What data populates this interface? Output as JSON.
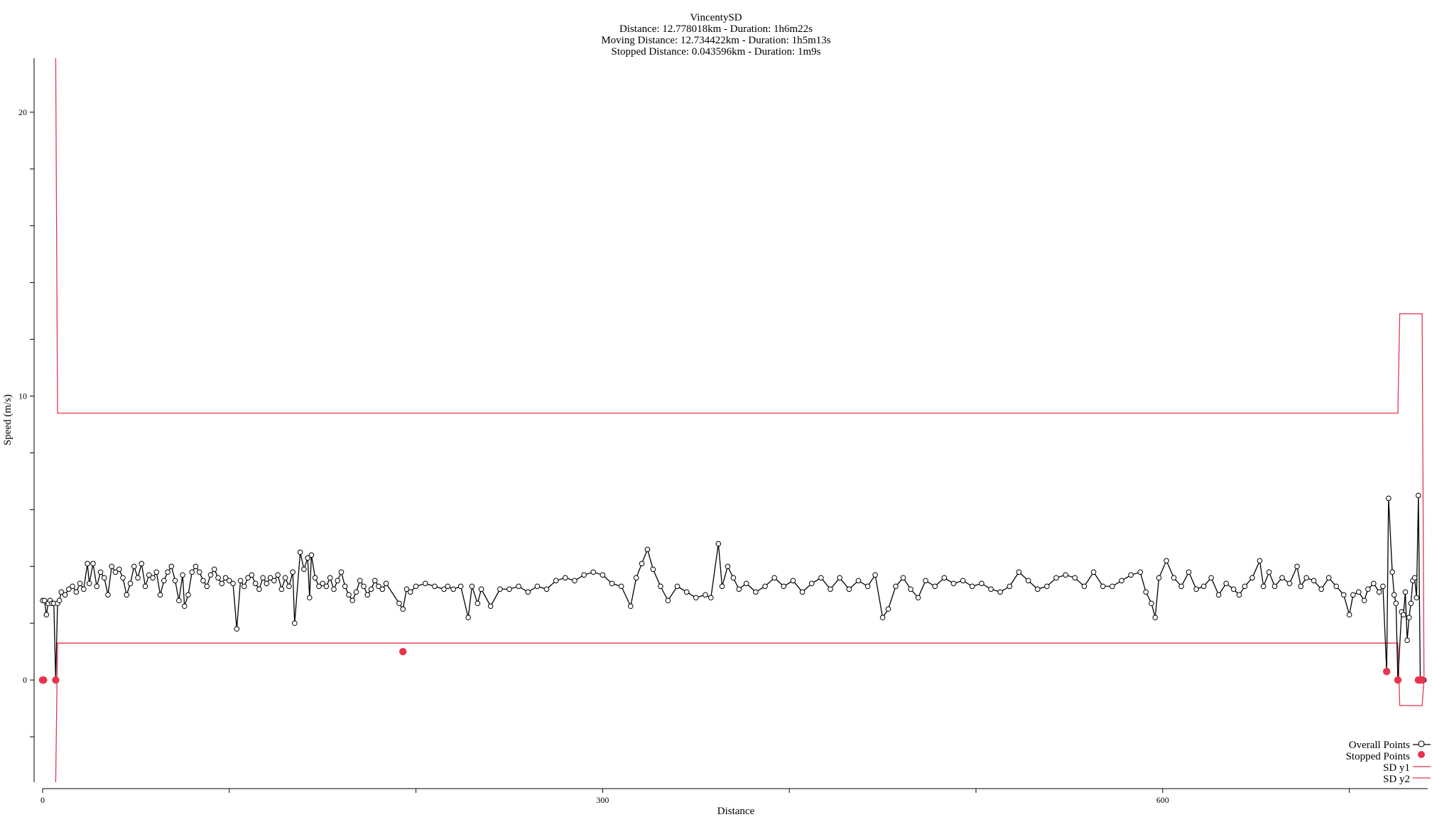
{
  "chart_data": {
    "type": "line",
    "title": "VincentySD",
    "subtitle_lines": [
      "Distance: 12.778018km - Duration: 1h6m22s",
      "Moving Distance: 12.734422km - Duration: 1h5m13s",
      "Stopped Distance: 0.043596km - Duration: 1m9s"
    ],
    "xlabel": "Distance",
    "ylabel": "Speed (m/s)",
    "xlim": [
      0,
      742
    ],
    "ylim": [
      -3.6,
      21.9
    ],
    "x_ticks": [
      0,
      100,
      200,
      300,
      400,
      500,
      600,
      700
    ],
    "x_tick_labels": [
      "0",
      "",
      "",
      "300",
      "",
      "",
      "600",
      ""
    ],
    "y_ticks": [
      -2,
      0,
      2,
      4,
      6,
      8,
      10,
      12,
      14,
      16,
      18,
      20
    ],
    "y_tick_labels": [
      "",
      "0",
      "",
      "",
      "",
      "",
      "10",
      "",
      "",
      "",
      "",
      "20"
    ],
    "grid": false,
    "legend_position": "bottom-right",
    "colors": {
      "overall": "#000000",
      "stopped": "#e8344e",
      "sd": "#e8344e"
    },
    "series": [
      {
        "name": "Overall Points",
        "style": "line-with-open-circles",
        "points": [
          [
            0,
            2.8
          ],
          [
            1,
            2.8
          ],
          [
            2,
            2.3
          ],
          [
            3,
            2.7
          ],
          [
            4,
            2.8
          ],
          [
            5,
            2.7
          ],
          [
            6,
            2.7
          ],
          [
            7,
            0.0
          ],
          [
            8,
            2.7
          ],
          [
            9,
            2.8
          ],
          [
            10,
            3.1
          ],
          [
            12,
            3.0
          ],
          [
            14,
            3.2
          ],
          [
            16,
            3.3
          ],
          [
            18,
            3.1
          ],
          [
            20,
            3.4
          ],
          [
            22,
            3.2
          ],
          [
            24,
            4.1
          ],
          [
            25,
            3.4
          ],
          [
            27,
            4.1
          ],
          [
            29,
            3.3
          ],
          [
            31,
            3.8
          ],
          [
            33,
            3.6
          ],
          [
            35,
            3.0
          ],
          [
            37,
            4.0
          ],
          [
            39,
            3.8
          ],
          [
            41,
            3.9
          ],
          [
            43,
            3.6
          ],
          [
            45,
            3.0
          ],
          [
            47,
            3.4
          ],
          [
            49,
            4.0
          ],
          [
            51,
            3.6
          ],
          [
            53,
            4.1
          ],
          [
            55,
            3.3
          ],
          [
            57,
            3.7
          ],
          [
            59,
            3.6
          ],
          [
            61,
            3.8
          ],
          [
            63,
            3.0
          ],
          [
            65,
            3.5
          ],
          [
            67,
            3.8
          ],
          [
            69,
            4.0
          ],
          [
            71,
            3.5
          ],
          [
            73,
            2.8
          ],
          [
            75,
            3.7
          ],
          [
            76,
            2.6
          ],
          [
            78,
            3.0
          ],
          [
            80,
            3.8
          ],
          [
            82,
            4.0
          ],
          [
            84,
            3.8
          ],
          [
            86,
            3.5
          ],
          [
            88,
            3.3
          ],
          [
            90,
            3.7
          ],
          [
            92,
            3.9
          ],
          [
            94,
            3.6
          ],
          [
            96,
            3.4
          ],
          [
            98,
            3.6
          ],
          [
            100,
            3.5
          ],
          [
            102,
            3.4
          ],
          [
            104,
            1.8
          ],
          [
            106,
            3.5
          ],
          [
            108,
            3.3
          ],
          [
            110,
            3.6
          ],
          [
            112,
            3.7
          ],
          [
            114,
            3.4
          ],
          [
            116,
            3.2
          ],
          [
            118,
            3.6
          ],
          [
            120,
            3.4
          ],
          [
            122,
            3.6
          ],
          [
            124,
            3.5
          ],
          [
            126,
            3.7
          ],
          [
            128,
            3.2
          ],
          [
            130,
            3.6
          ],
          [
            132,
            3.3
          ],
          [
            134,
            3.8
          ],
          [
            135,
            2.0
          ],
          [
            138,
            4.5
          ],
          [
            140,
            3.9
          ],
          [
            142,
            4.3
          ],
          [
            143,
            2.9
          ],
          [
            144,
            4.4
          ],
          [
            146,
            3.6
          ],
          [
            148,
            3.3
          ],
          [
            150,
            3.4
          ],
          [
            152,
            3.3
          ],
          [
            154,
            3.6
          ],
          [
            156,
            3.2
          ],
          [
            158,
            3.5
          ],
          [
            160,
            3.8
          ],
          [
            162,
            3.3
          ],
          [
            164,
            3.0
          ],
          [
            166,
            2.8
          ],
          [
            168,
            3.1
          ],
          [
            170,
            3.5
          ],
          [
            172,
            3.3
          ],
          [
            174,
            3.0
          ],
          [
            176,
            3.2
          ],
          [
            178,
            3.5
          ],
          [
            180,
            3.3
          ],
          [
            182,
            3.2
          ],
          [
            184,
            3.4
          ],
          [
            191,
            2.7
          ],
          [
            193,
            2.5
          ],
          [
            195,
            3.2
          ],
          [
            197,
            3.1
          ],
          [
            200,
            3.3
          ],
          [
            205,
            3.4
          ],
          [
            210,
            3.3
          ],
          [
            215,
            3.2
          ],
          [
            217,
            3.3
          ],
          [
            220,
            3.2
          ],
          [
            224,
            3.3
          ],
          [
            228,
            2.2
          ],
          [
            230,
            3.3
          ],
          [
            233,
            2.7
          ],
          [
            235,
            3.2
          ],
          [
            240,
            2.6
          ],
          [
            245,
            3.2
          ],
          [
            250,
            3.2
          ],
          [
            255,
            3.3
          ],
          [
            260,
            3.1
          ],
          [
            265,
            3.3
          ],
          [
            270,
            3.2
          ],
          [
            275,
            3.5
          ],
          [
            280,
            3.6
          ],
          [
            285,
            3.5
          ],
          [
            290,
            3.7
          ],
          [
            295,
            3.8
          ],
          [
            300,
            3.7
          ],
          [
            305,
            3.4
          ],
          [
            310,
            3.3
          ],
          [
            315,
            2.6
          ],
          [
            318,
            3.6
          ],
          [
            321,
            4.1
          ],
          [
            324,
            4.6
          ],
          [
            327,
            3.9
          ],
          [
            331,
            3.3
          ],
          [
            335,
            2.8
          ],
          [
            340,
            3.3
          ],
          [
            345,
            3.1
          ],
          [
            350,
            2.9
          ],
          [
            355,
            3.0
          ],
          [
            358,
            2.9
          ],
          [
            362,
            4.8
          ],
          [
            364,
            3.3
          ],
          [
            367,
            4.0
          ],
          [
            370,
            3.6
          ],
          [
            373,
            3.2
          ],
          [
            377,
            3.4
          ],
          [
            382,
            3.1
          ],
          [
            387,
            3.3
          ],
          [
            392,
            3.6
          ],
          [
            397,
            3.3
          ],
          [
            402,
            3.5
          ],
          [
            407,
            3.1
          ],
          [
            412,
            3.4
          ],
          [
            417,
            3.6
          ],
          [
            422,
            3.2
          ],
          [
            427,
            3.6
          ],
          [
            432,
            3.2
          ],
          [
            437,
            3.5
          ],
          [
            442,
            3.3
          ],
          [
            446,
            3.7
          ],
          [
            450,
            2.2
          ],
          [
            453,
            2.5
          ],
          [
            457,
            3.3
          ],
          [
            461,
            3.6
          ],
          [
            465,
            3.2
          ],
          [
            469,
            2.9
          ],
          [
            473,
            3.5
          ],
          [
            478,
            3.3
          ],
          [
            483,
            3.6
          ],
          [
            488,
            3.4
          ],
          [
            493,
            3.5
          ],
          [
            498,
            3.3
          ],
          [
            503,
            3.4
          ],
          [
            508,
            3.2
          ],
          [
            513,
            3.1
          ],
          [
            518,
            3.3
          ],
          [
            523,
            3.8
          ],
          [
            528,
            3.5
          ],
          [
            533,
            3.2
          ],
          [
            538,
            3.3
          ],
          [
            543,
            3.6
          ],
          [
            548,
            3.7
          ],
          [
            553,
            3.6
          ],
          [
            558,
            3.3
          ],
          [
            563,
            3.8
          ],
          [
            568,
            3.3
          ],
          [
            573,
            3.3
          ],
          [
            578,
            3.5
          ],
          [
            583,
            3.7
          ],
          [
            588,
            3.8
          ],
          [
            591,
            3.1
          ],
          [
            594,
            2.7
          ],
          [
            596,
            2.2
          ],
          [
            598,
            3.6
          ],
          [
            602,
            4.2
          ],
          [
            606,
            3.6
          ],
          [
            610,
            3.3
          ],
          [
            614,
            3.8
          ],
          [
            618,
            3.2
          ],
          [
            622,
            3.3
          ],
          [
            626,
            3.6
          ],
          [
            630,
            3.0
          ],
          [
            634,
            3.4
          ],
          [
            638,
            3.2
          ],
          [
            641,
            3.0
          ],
          [
            644,
            3.3
          ],
          [
            648,
            3.6
          ],
          [
            652,
            4.2
          ],
          [
            654,
            3.3
          ],
          [
            657,
            3.8
          ],
          [
            660,
            3.3
          ],
          [
            664,
            3.6
          ],
          [
            668,
            3.4
          ],
          [
            672,
            4.0
          ],
          [
            674,
            3.3
          ],
          [
            677,
            3.6
          ],
          [
            681,
            3.5
          ],
          [
            685,
            3.2
          ],
          [
            689,
            3.6
          ],
          [
            693,
            3.3
          ],
          [
            697,
            3.0
          ],
          [
            700,
            2.3
          ],
          [
            702,
            3.0
          ],
          [
            705,
            3.1
          ],
          [
            708,
            2.8
          ],
          [
            710,
            3.2
          ],
          [
            713,
            3.4
          ],
          [
            716,
            3.1
          ],
          [
            718,
            3.3
          ],
          [
            720,
            0.3
          ],
          [
            721,
            6.4
          ],
          [
            723,
            3.8
          ],
          [
            724,
            3.0
          ],
          [
            725,
            2.7
          ],
          [
            726,
            0.0
          ],
          [
            728,
            2.4
          ],
          [
            729,
            2.3
          ],
          [
            730,
            3.1
          ],
          [
            731,
            1.4
          ],
          [
            732,
            2.2
          ],
          [
            733,
            2.7
          ],
          [
            734,
            3.5
          ],
          [
            735,
            3.6
          ],
          [
            736,
            2.9
          ],
          [
            737,
            6.5
          ],
          [
            738,
            0.0
          ],
          [
            739,
            0.0
          ],
          [
            740,
            0.0
          ]
        ]
      },
      {
        "name": "Stopped Points",
        "style": "filled-dots",
        "points": [
          [
            0,
            0.0
          ],
          [
            0.5,
            0.0
          ],
          [
            7,
            0.0
          ],
          [
            193,
            1.0
          ],
          [
            720,
            0.3
          ],
          [
            726,
            0.0
          ],
          [
            737,
            0.0
          ],
          [
            738,
            0.0
          ],
          [
            739,
            0.0
          ]
        ]
      },
      {
        "name": "SD y1",
        "style": "line",
        "points": [
          [
            7,
            21.9
          ],
          [
            8,
            9.4
          ],
          [
            726,
            9.4
          ],
          [
            727,
            12.9
          ],
          [
            739,
            12.9
          ],
          [
            740,
            0.0
          ]
        ]
      },
      {
        "name": "SD y2",
        "style": "line",
        "points": [
          [
            7,
            -3.6
          ],
          [
            8,
            1.3
          ],
          [
            726,
            1.3
          ],
          [
            727,
            -0.9
          ],
          [
            739,
            -0.9
          ],
          [
            740,
            0.0
          ]
        ]
      }
    ]
  }
}
